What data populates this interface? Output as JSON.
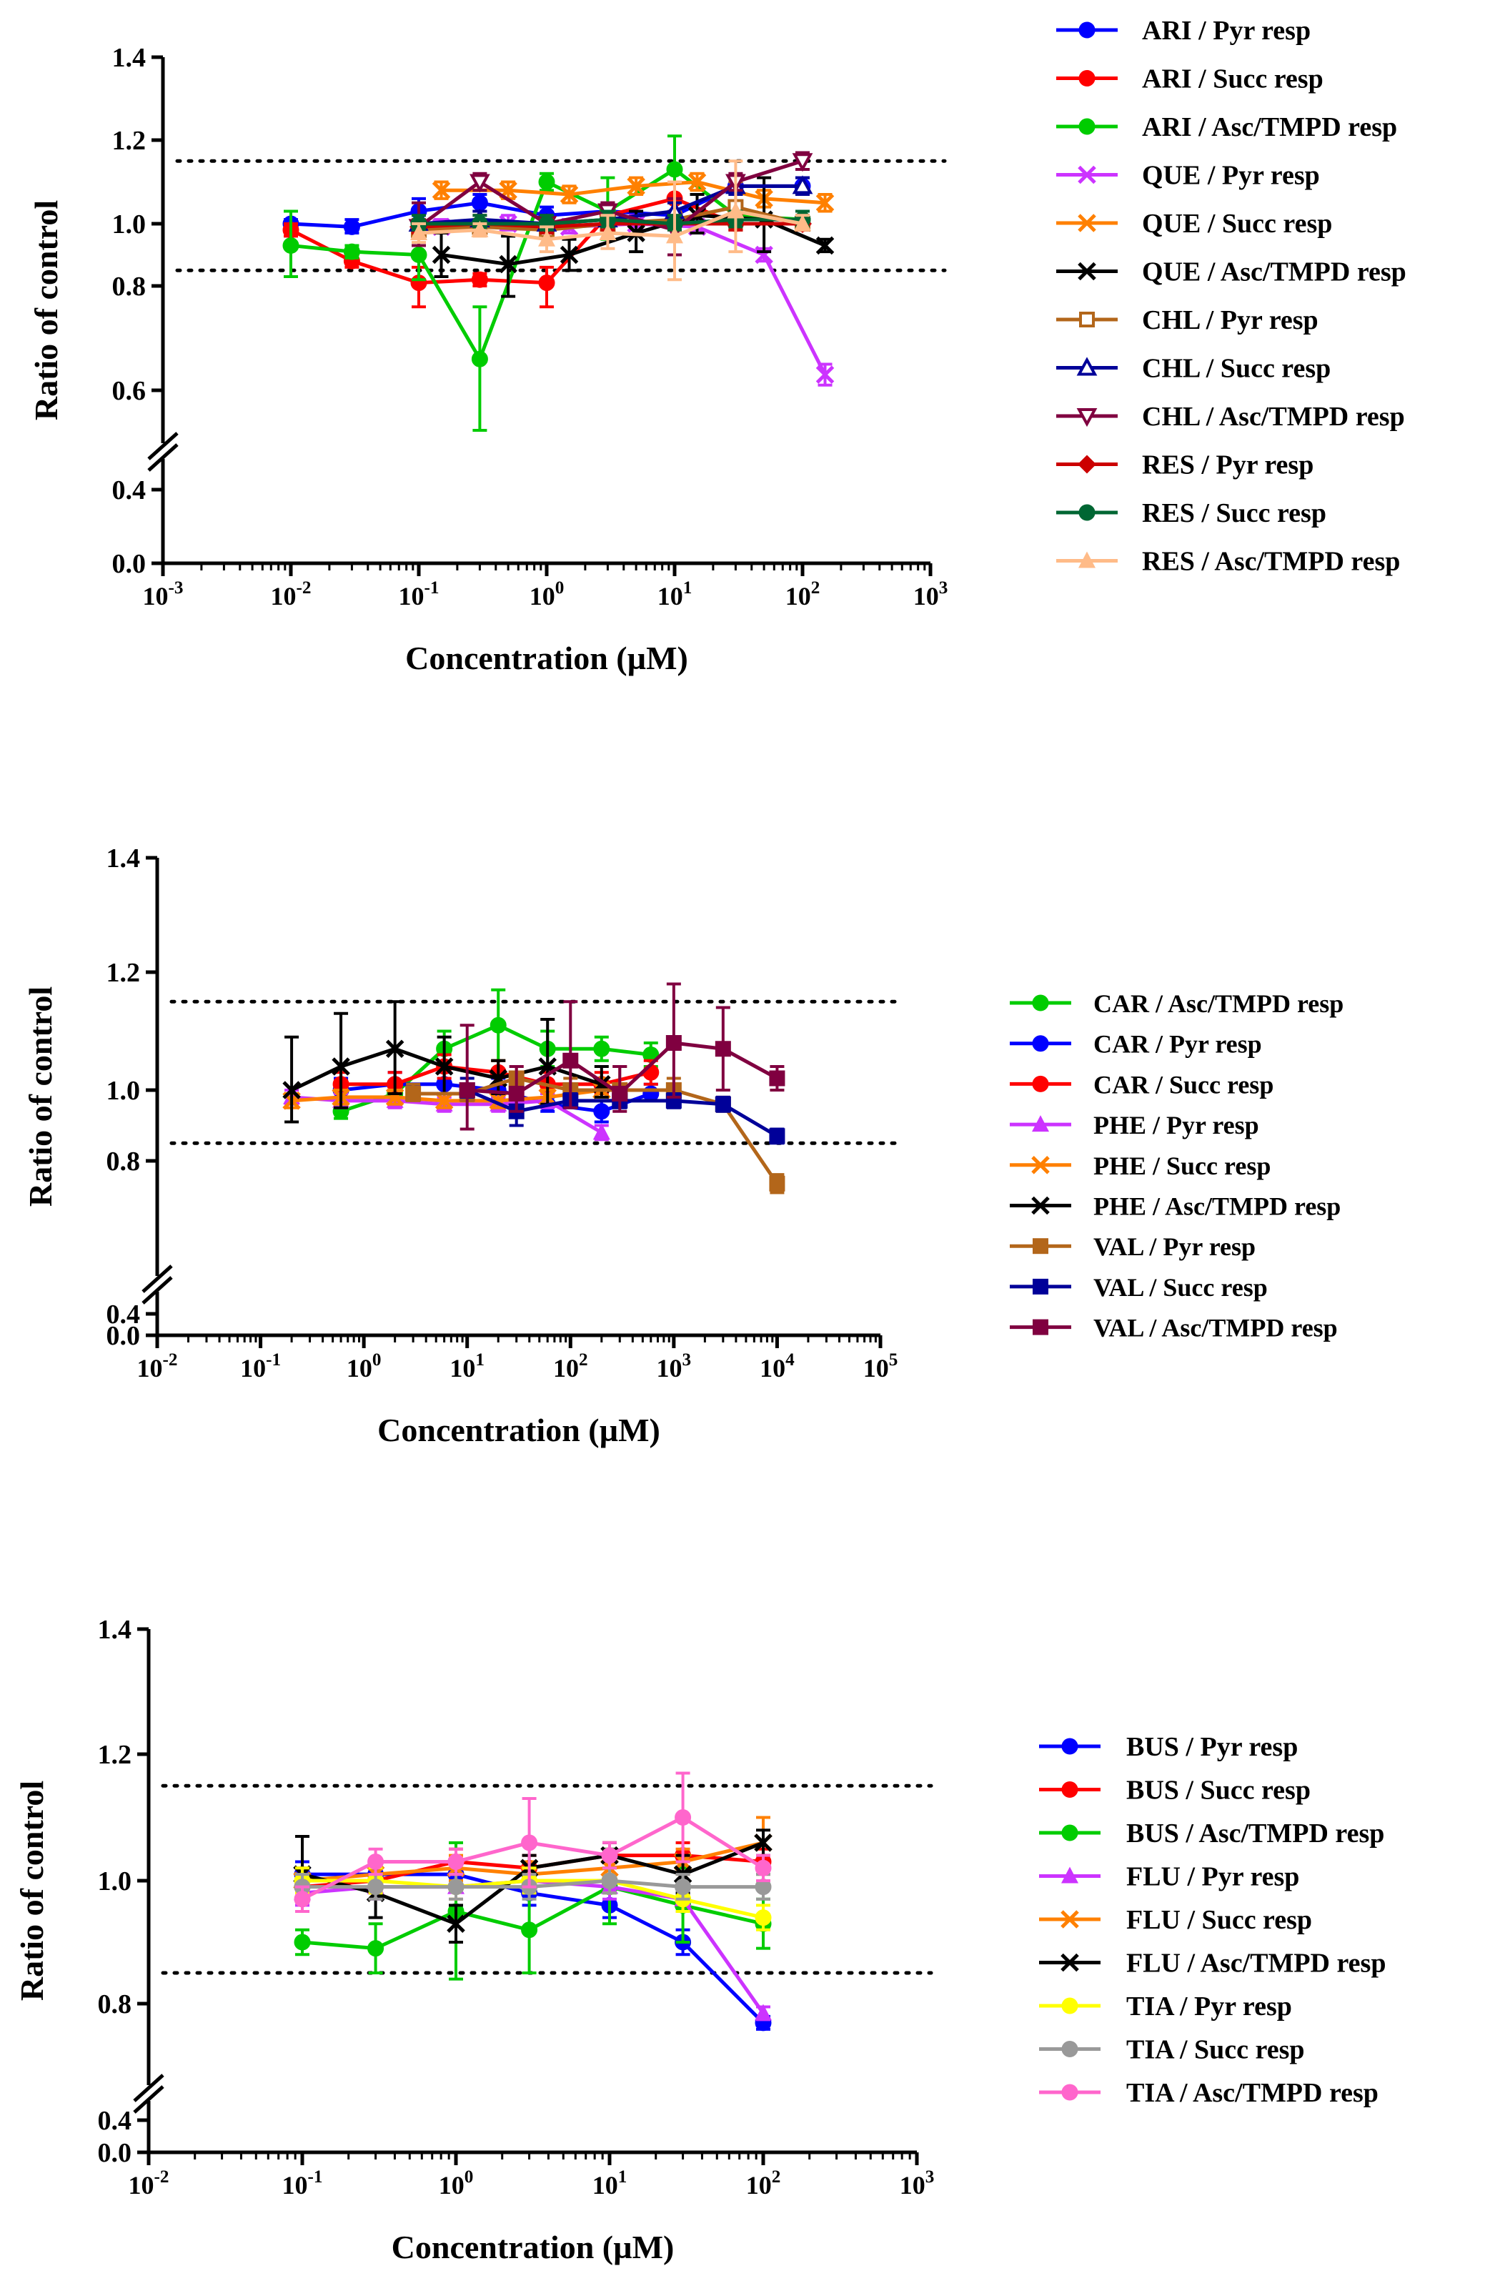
{
  "chart_data": [
    {
      "type": "line",
      "ylabel": "Ratio of control",
      "xlabel": "Concentration (µM)",
      "xscale": "log",
      "xlim_exp": [
        -3,
        3
      ],
      "yticks": [
        "0.0",
        "0.4",
        "0.6",
        "0.8",
        "1.0",
        "1.2",
        "1.4"
      ],
      "reference_lines": [
        0.85,
        1.15
      ],
      "legend_position": "right",
      "series": [
        {
          "name": "ARI / Pyr resp",
          "color": "#0000ff",
          "marker": "circle",
          "x": [
            0.01,
            0.03,
            0.1,
            0.3,
            1,
            3,
            10,
            30,
            100
          ],
          "y": [
            1.0,
            0.99,
            1.03,
            1.05,
            1.02,
            1.03,
            1.02,
            1.09,
            1.09
          ],
          "err": [
            0.01,
            0.02,
            0.03,
            0.02,
            0.02,
            0.02,
            0.03,
            0.02,
            0.02
          ]
        },
        {
          "name": "ARI / Succ resp",
          "color": "#ff0000",
          "marker": "circle",
          "x": [
            0.01,
            0.03,
            0.1,
            0.3,
            1,
            3,
            10,
            30,
            100
          ],
          "y": [
            0.98,
            0.88,
            0.81,
            0.82,
            0.81,
            1.02,
            1.06,
            1.0,
            1.0
          ],
          "err": [
            0.02,
            0.02,
            0.05,
            0.02,
            0.05,
            0.03,
            0.04,
            0.02,
            0.02
          ]
        },
        {
          "name": "ARI / Asc/TMPD resp",
          "color": "#00cc00",
          "marker": "circle",
          "x": [
            0.01,
            0.03,
            0.1,
            0.3,
            1,
            3,
            10,
            30,
            100
          ],
          "y": [
            0.93,
            0.91,
            0.9,
            0.66,
            1.1,
            1.03,
            1.13,
            1.02,
            1.01
          ],
          "err": [
            0.1,
            0.02,
            0.08,
            0.1,
            0.02,
            0.08,
            0.08,
            0.03,
            0.02
          ]
        },
        {
          "name": "QUE / Pyr resp",
          "color": "#cc33ff",
          "marker": "x",
          "x": [
            0.15,
            0.5,
            1.5,
            5,
            15,
            50,
            150
          ],
          "y": [
            0.99,
            1.0,
            0.99,
            1.0,
            0.99,
            0.9,
            0.63
          ],
          "err": [
            0.02,
            0.02,
            0.02,
            0.02,
            0.02,
            0.02,
            0.02
          ]
        },
        {
          "name": "QUE / Succ resp",
          "color": "#ff8000",
          "marker": "x",
          "x": [
            0.15,
            0.5,
            1.5,
            5,
            15,
            50,
            150
          ],
          "y": [
            1.08,
            1.08,
            1.07,
            1.09,
            1.1,
            1.06,
            1.05
          ],
          "err": [
            0.02,
            0.02,
            0.02,
            0.02,
            0.02,
            0.02,
            0.02
          ]
        },
        {
          "name": "QUE / Asc/TMPD resp",
          "color": "#000000",
          "marker": "x",
          "x": [
            0.15,
            0.5,
            1.5,
            5,
            15,
            50,
            150
          ],
          "y": [
            0.9,
            0.87,
            0.9,
            0.97,
            1.02,
            1.01,
            0.93
          ],
          "err": [
            0.07,
            0.09,
            0.05,
            0.06,
            0.05,
            0.1,
            0.02
          ]
        },
        {
          "name": "CHL / Pyr resp",
          "color": "#b3661a",
          "marker": "square-open",
          "x": [
            0.1,
            0.3,
            1,
            3,
            10,
            30,
            100
          ],
          "y": [
            0.98,
            0.99,
            0.98,
            1.0,
            1.01,
            1.04,
            1.0
          ],
          "err": [
            0.02,
            0.02,
            0.02,
            0.02,
            0.02,
            0.06,
            0.02
          ]
        },
        {
          "name": "CHL / Succ resp",
          "color": "#000099",
          "marker": "triangle-up-open",
          "x": [
            0.1,
            0.3,
            1,
            3,
            10,
            30,
            100
          ],
          "y": [
            1.0,
            1.01,
            1.0,
            1.01,
            1.03,
            1.09,
            1.09
          ],
          "err": [
            0.02,
            0.02,
            0.02,
            0.02,
            0.02,
            0.02,
            0.02
          ]
        },
        {
          "name": "CHL / Asc/TMPD resp",
          "color": "#800040",
          "marker": "triangle-down-open",
          "x": [
            0.1,
            0.3,
            1,
            3,
            10,
            30,
            100
          ],
          "y": [
            0.99,
            1.1,
            1.0,
            1.03,
            0.98,
            1.1,
            1.15
          ],
          "err": [
            0.06,
            0.02,
            0.02,
            0.02,
            0.08,
            0.02,
            0.02
          ]
        },
        {
          "name": "RES / Pyr resp",
          "color": "#cc0000",
          "marker": "diamond",
          "x": [
            0.1,
            0.3,
            1,
            3,
            10,
            30,
            100
          ],
          "y": [
            0.99,
            1.0,
            0.99,
            1.0,
            1.0,
            1.0,
            1.0
          ],
          "err": [
            0.02,
            0.02,
            0.02,
            0.02,
            0.02,
            0.02,
            0.02
          ]
        },
        {
          "name": "RES / Succ resp",
          "color": "#006633",
          "marker": "circle",
          "x": [
            0.1,
            0.3,
            1,
            3,
            10,
            30,
            100
          ],
          "y": [
            1.0,
            1.0,
            1.0,
            1.01,
            1.0,
            1.01,
            1.01
          ],
          "err": [
            0.02,
            0.02,
            0.02,
            0.02,
            0.02,
            0.02,
            0.02
          ]
        },
        {
          "name": "RES / Asc/TMPD resp",
          "color": "#ffbb88",
          "marker": "triangle-up",
          "x": [
            0.1,
            0.3,
            1,
            3,
            10,
            30,
            100
          ],
          "y": [
            0.97,
            0.98,
            0.95,
            0.97,
            0.96,
            1.03,
            1.0
          ],
          "err": [
            0.03,
            0.02,
            0.04,
            0.05,
            0.14,
            0.12,
            0.02
          ]
        }
      ]
    },
    {
      "type": "line",
      "ylabel": "Ratio of control",
      "xlabel": "Concentration (µM)",
      "xscale": "log",
      "xlim_exp": [
        -2,
        5
      ],
      "yticks": [
        "0.0",
        "0.4",
        "0.8",
        "1.0",
        "1.2",
        "1.4"
      ],
      "reference_lines": [
        0.85,
        1.15
      ],
      "legend_position": "right",
      "series": [
        {
          "name": "CAR / Asc/TMPD resp",
          "color": "#00cc00",
          "marker": "circle",
          "x": [
            0.6,
            2,
            6,
            20,
            60,
            200,
            600
          ],
          "y": [
            0.94,
            0.99,
            1.07,
            1.11,
            1.07,
            1.07,
            1.06
          ],
          "err": [
            0.02,
            0.02,
            0.03,
            0.06,
            0.03,
            0.02,
            0.02
          ]
        },
        {
          "name": "CAR / Pyr resp",
          "color": "#0000ff",
          "marker": "circle",
          "x": [
            0.6,
            2,
            6,
            20,
            60,
            200,
            600
          ],
          "y": [
            1.0,
            1.01,
            1.01,
            1.0,
            0.96,
            0.94,
            0.99
          ],
          "err": [
            0.02,
            0.02,
            0.02,
            0.02,
            0.02,
            0.03,
            0.02
          ]
        },
        {
          "name": "CAR / Succ resp",
          "color": "#ff0000",
          "marker": "circle",
          "x": [
            0.6,
            2,
            6,
            20,
            60,
            200,
            600
          ],
          "y": [
            1.01,
            1.01,
            1.04,
            1.03,
            1.01,
            1.01,
            1.03
          ],
          "err": [
            0.02,
            0.02,
            0.02,
            0.02,
            0.02,
            0.02,
            0.02
          ]
        },
        {
          "name": "PHE  / Pyr resp",
          "color": "#cc33ff",
          "marker": "triangle-up",
          "x": [
            0.2,
            0.6,
            2,
            6,
            20,
            60,
            200
          ],
          "y": [
            0.98,
            0.97,
            0.97,
            0.96,
            0.96,
            0.97,
            0.88
          ],
          "err": [
            0.02,
            0.02,
            0.02,
            0.02,
            0.02,
            0.02,
            0.02
          ]
        },
        {
          "name": "PHE  / Succ resp",
          "color": "#ff8000",
          "marker": "x",
          "x": [
            0.2,
            0.6,
            2,
            6,
            20,
            60,
            200
          ],
          "y": [
            0.97,
            0.98,
            0.98,
            0.97,
            0.97,
            0.98,
            1.0
          ],
          "err": [
            0.02,
            0.02,
            0.02,
            0.02,
            0.02,
            0.02,
            0.02
          ]
        },
        {
          "name": "PHE  / Asc/TMPD resp",
          "color": "#000000",
          "marker": "x",
          "x": [
            0.2,
            0.6,
            2,
            6,
            20,
            60,
            200
          ],
          "y": [
            1.0,
            1.04,
            1.07,
            1.04,
            1.02,
            1.04,
            1.01
          ],
          "err": [
            0.09,
            0.09,
            0.08,
            0.05,
            0.03,
            0.08,
            0.03
          ]
        },
        {
          "name": "VAL / Pyr resp",
          "color": "#b3661a",
          "marker": "square",
          "x": [
            3,
            10,
            30,
            100,
            300,
            1000,
            3000,
            10000
          ],
          "y": [
            0.99,
            0.99,
            1.02,
            1.0,
            1.0,
            1.0,
            0.96,
            0.75
          ],
          "err": [
            0.02,
            0.02,
            0.02,
            0.02,
            0.04,
            0.02,
            0.02,
            0.02
          ]
        },
        {
          "name": "VAL  / Succ resp",
          "color": "#000099",
          "marker": "square",
          "x": [
            10,
            30,
            100,
            300,
            1000,
            3000,
            10000
          ],
          "y": [
            1.0,
            0.94,
            0.97,
            0.97,
            0.97,
            0.96,
            0.87
          ],
          "err": [
            0.02,
            0.04,
            0.02,
            0.02,
            0.02,
            0.02,
            0.02
          ]
        },
        {
          "name": "VAL  / Asc/TMPD resp",
          "color": "#800040",
          "marker": "square",
          "x": [
            10,
            30,
            100,
            300,
            1000,
            3000,
            10000
          ],
          "y": [
            1.0,
            0.99,
            1.05,
            0.99,
            1.08,
            1.07,
            1.02
          ],
          "err": [
            0.11,
            0.05,
            0.1,
            0.05,
            0.1,
            0.07,
            0.02
          ]
        }
      ]
    },
    {
      "type": "line",
      "ylabel": "Ratio of control",
      "xlabel": "Concentration (µM)",
      "xscale": "log",
      "xlim_exp": [
        -2,
        3
      ],
      "yticks": [
        "0.0",
        "0.4",
        "0.8",
        "1.0",
        "1.2",
        "1.4"
      ],
      "reference_lines": [
        0.85,
        1.15
      ],
      "legend_position": "right",
      "series": [
        {
          "name": "BUS / Pyr resp",
          "color": "#0000ff",
          "marker": "circle",
          "x": [
            0.1,
            0.3,
            1,
            3,
            10,
            30,
            100
          ],
          "y": [
            1.01,
            1.01,
            1.01,
            0.98,
            0.96,
            0.9,
            0.74
          ],
          "err": [
            0.02,
            0.02,
            0.02,
            0.02,
            0.02,
            0.02,
            0.02
          ]
        },
        {
          "name": "BUS / Succ resp",
          "color": "#ff0000",
          "marker": "circle",
          "x": [
            0.1,
            0.3,
            1,
            3,
            10,
            30,
            100
          ],
          "y": [
            0.99,
            1.0,
            1.03,
            1.02,
            1.04,
            1.04,
            1.03
          ],
          "err": [
            0.02,
            0.02,
            0.02,
            0.02,
            0.02,
            0.02,
            0.02
          ]
        },
        {
          "name": "BUS / Asc/TMPD resp",
          "color": "#00cc00",
          "marker": "circle",
          "x": [
            0.1,
            0.3,
            1,
            3,
            10,
            30,
            100
          ],
          "y": [
            0.9,
            0.89,
            0.95,
            0.92,
            0.99,
            0.96,
            0.93
          ],
          "err": [
            0.02,
            0.04,
            0.11,
            0.07,
            0.06,
            0.06,
            0.04
          ]
        },
        {
          "name": "FLU / Pyr resp",
          "color": "#cc33ff",
          "marker": "triangle-up",
          "x": [
            0.1,
            0.3,
            1,
            3,
            10,
            30,
            100
          ],
          "y": [
            0.98,
            0.99,
            0.99,
            1.0,
            0.99,
            0.97,
            0.77
          ],
          "err": [
            0.02,
            0.02,
            0.02,
            0.02,
            0.02,
            0.02,
            0.02
          ]
        },
        {
          "name": "FLU / Succ resp",
          "color": "#ff8000",
          "marker": "x",
          "x": [
            0.1,
            0.3,
            1,
            3,
            10,
            30,
            100
          ],
          "y": [
            1.0,
            1.01,
            1.02,
            1.01,
            1.02,
            1.03,
            1.06
          ],
          "err": [
            0.02,
            0.02,
            0.02,
            0.02,
            0.02,
            0.02,
            0.04
          ]
        },
        {
          "name": "FLU / Asc/TMPD resp",
          "color": "#000000",
          "marker": "x",
          "x": [
            0.1,
            0.3,
            1,
            3,
            10,
            30,
            100
          ],
          "y": [
            1.01,
            0.98,
            0.93,
            1.02,
            1.04,
            1.01,
            1.06
          ],
          "err": [
            0.06,
            0.04,
            0.03,
            0.02,
            0.02,
            0.03,
            0.02
          ]
        },
        {
          "name": "TIA / Pyr resp",
          "color": "#ffff00",
          "marker": "circle",
          "x": [
            0.1,
            0.3,
            1,
            3,
            10,
            30,
            100
          ],
          "y": [
            1.0,
            1.0,
            0.99,
            1.0,
            1.0,
            0.97,
            0.94
          ],
          "err": [
            0.02,
            0.02,
            0.02,
            0.02,
            0.02,
            0.02,
            0.02
          ]
        },
        {
          "name": "TIA / Succ resp",
          "color": "#999999",
          "marker": "circle",
          "x": [
            0.1,
            0.3,
            1,
            3,
            10,
            30,
            100
          ],
          "y": [
            0.99,
            0.99,
            0.99,
            0.99,
            1.0,
            0.99,
            0.99
          ],
          "err": [
            0.02,
            0.02,
            0.02,
            0.02,
            0.02,
            0.02,
            0.02
          ]
        },
        {
          "name": "TIA / Asc/TMPD resp",
          "color": "#ff66cc",
          "marker": "circle",
          "x": [
            0.1,
            0.3,
            1,
            3,
            10,
            30,
            100
          ],
          "y": [
            0.97,
            1.03,
            1.03,
            1.06,
            1.04,
            1.1,
            1.02
          ],
          "err": [
            0.02,
            0.02,
            0.02,
            0.07,
            0.02,
            0.07,
            0.02
          ]
        }
      ]
    }
  ]
}
